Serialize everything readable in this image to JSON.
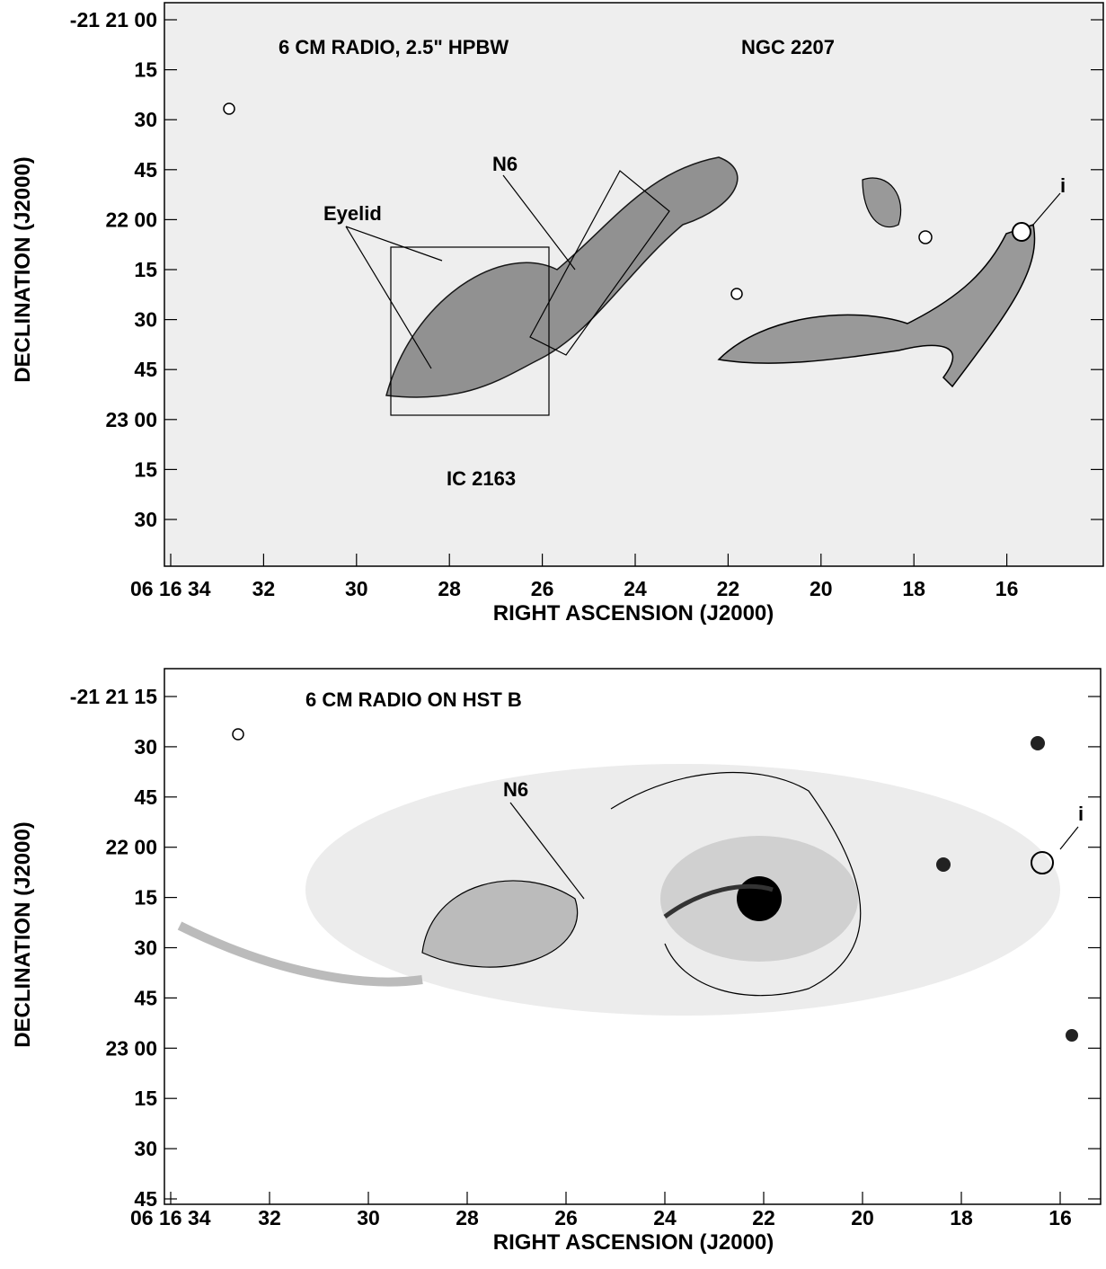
{
  "panels": [
    {
      "annotations": {
        "title": "6 CM RADIO, 2.5\" HPBW",
        "object": "NGC 2207",
        "n6": "N6",
        "eyelid": "Eyelid",
        "i": "i",
        "companion": "IC 2163"
      },
      "y_axis": {
        "label": "DECLINATION (J2000)",
        "ticks": [
          "-21 21 00",
          "15",
          "30",
          "45",
          "22 00",
          "15",
          "30",
          "45",
          "23 00",
          "15",
          "30"
        ]
      },
      "x_axis": {
        "label": "RIGHT ASCENSION (J2000)",
        "ticks": [
          "06 16 34",
          "32",
          "30",
          "28",
          "26",
          "24",
          "22",
          "20",
          "18",
          "16"
        ]
      }
    },
    {
      "annotations": {
        "title": "6 CM RADIO ON HST B",
        "n6": "N6",
        "i": "i"
      },
      "y_axis": {
        "label": "DECLINATION (J2000)",
        "ticks": [
          "-21 21 15",
          "30",
          "45",
          "22 00",
          "15",
          "30",
          "45",
          "23 00",
          "15",
          "30",
          "45"
        ]
      },
      "x_axis": {
        "label": "RIGHT ASCENSION (J2000)",
        "ticks": [
          "06 16 34",
          "32",
          "30",
          "28",
          "26",
          "24",
          "22",
          "20",
          "18",
          "16"
        ]
      }
    }
  ]
}
